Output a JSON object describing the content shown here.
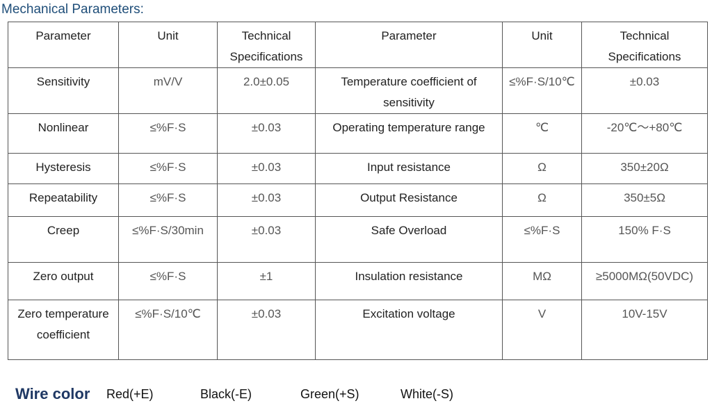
{
  "title": "Mechanical Parameters:",
  "table": {
    "header": [
      "Parameter",
      "Unit",
      "Technical Specifications",
      "Parameter",
      "Unit",
      "Technical Specifications"
    ],
    "rows": [
      [
        "Sensitivity",
        "mV/V",
        "2.0±0.05",
        "Temperature coefficient of sensitivity",
        "≤%F·S/10℃",
        "±0.03"
      ],
      [
        "Nonlinear",
        "≤%F·S",
        "±0.03",
        "Operating temperature range",
        "℃",
        "-20℃～+80℃"
      ],
      [
        "Hysteresis",
        "≤%F·S",
        "±0.03",
        "Input resistance",
        "Ω",
        "350±20Ω"
      ],
      [
        "Repeatability",
        "≤%F·S",
        "±0.03",
        "Output Resistance",
        "Ω",
        "350±5Ω"
      ],
      [
        "Creep",
        "≤%F·S/30min",
        "±0.03",
        "Safe Overload",
        "≤%F·S",
        "150% F·S"
      ],
      [
        "Zero output",
        "≤%F·S",
        "±1",
        "Insulation resistance",
        "MΩ",
        "≥5000MΩ(50VDC)"
      ],
      [
        "Zero temperature coefficient",
        "≤%F·S/10℃",
        "±0.03",
        "Excitation voltage",
        "V",
        "10V-15V"
      ]
    ]
  },
  "wire_color": {
    "label": "Wire color",
    "items": [
      "Red(+E)",
      "Black(-E)",
      "Green(+S)",
      "White(-S)"
    ]
  }
}
